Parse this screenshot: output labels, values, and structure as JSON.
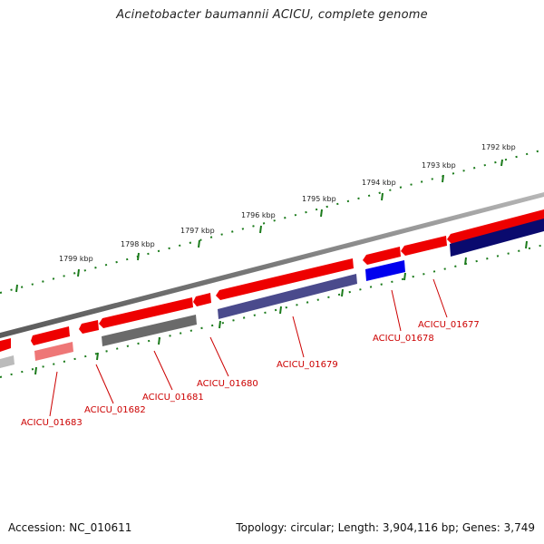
{
  "title": "Acinetobacter baumannii ACICU, complete genome",
  "footer": {
    "accession": "Accession: NC_010611",
    "summary": "Topology: circular; Length: 3,904,116 bp; Genes: 3,749"
  },
  "ticks": [
    "1792 kbp",
    "1793 kbp",
    "1794 kbp",
    "1795 kbp",
    "1796 kbp",
    "1797 kbp",
    "1798 kbp",
    "1799 kbp"
  ],
  "genes": [
    "ACICU_01677",
    "ACICU_01678",
    "ACICU_01679",
    "ACICU_01680",
    "ACICU_01681",
    "ACICU_01682",
    "ACICU_01683"
  ],
  "colors": {
    "backbone": "#8a8a8a",
    "gene_red": "#ee0000",
    "label_red": "#cc0000",
    "tick_green": "#1a7a1a",
    "navy": "#0a0a6e",
    "blue": "#0000ee",
    "slate": "#4a4a8c",
    "gray": "#6a6a6a",
    "pink": "#ee7777"
  }
}
